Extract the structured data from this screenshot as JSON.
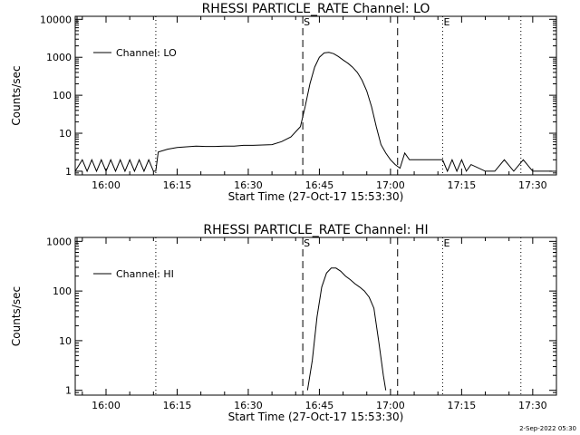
{
  "footer": {
    "timestamp": "2-Sep-2022 05:30"
  },
  "chart_data": [
    {
      "type": "line",
      "title": "RHESSI PARTICLE_RATE Channel: LO",
      "xlabel": "Start Time (27-Oct-17 15:53:30)",
      "ylabel": "Counts/sec",
      "yscale": "log",
      "xlim": [
        "15:53:30",
        "17:35:00"
      ],
      "ylim": [
        0.8,
        12000
      ],
      "x_ticks": [
        "16:00",
        "16:15",
        "16:30",
        "16:45",
        "17:00",
        "17:15",
        "17:30"
      ],
      "y_ticks": [
        "1",
        "10",
        "100",
        "1000",
        "10000"
      ],
      "legend": {
        "position": "top-left",
        "entries": [
          "Channel: LO"
        ]
      },
      "markers": [
        {
          "time": "16:10:30",
          "style": "dotted",
          "label": ""
        },
        {
          "time": "16:41:30",
          "style": "dashed",
          "label": "S"
        },
        {
          "time": "17:01:30",
          "style": "dashed",
          "label": ""
        },
        {
          "time": "17:11:00",
          "style": "dotted",
          "label": "E"
        },
        {
          "time": "17:27:30",
          "style": "dotted",
          "label": ""
        }
      ],
      "series": [
        {
          "name": "Channel: LO",
          "x": [
            "15:53:30",
            "15:55:00",
            "15:56:00",
            "15:57:00",
            "15:58:00",
            "15:59:00",
            "16:00:00",
            "16:01:00",
            "16:02:00",
            "16:03:00",
            "16:04:00",
            "16:05:00",
            "16:06:00",
            "16:07:00",
            "16:08:00",
            "16:09:00",
            "16:10:00",
            "16:10:30",
            "16:11:00",
            "16:13:00",
            "16:15:00",
            "16:17:00",
            "16:19:00",
            "16:21:00",
            "16:23:00",
            "16:25:00",
            "16:27:00",
            "16:29:00",
            "16:31:00",
            "16:33:00",
            "16:35:00",
            "16:37:00",
            "16:39:00",
            "16:41:00",
            "16:42:00",
            "16:43:00",
            "16:44:00",
            "16:45:00",
            "16:46:00",
            "16:47:00",
            "16:48:00",
            "16:49:00",
            "16:50:00",
            "16:51:00",
            "16:52:00",
            "16:53:00",
            "16:54:00",
            "16:55:00",
            "16:56:00",
            "16:57:00",
            "16:58:00",
            "16:59:00",
            "17:00:00",
            "17:01:00",
            "17:02:00",
            "17:03:00",
            "17:04:00",
            "17:05:00",
            "17:07:00",
            "17:09:00",
            "17:11:00",
            "17:12:00",
            "17:13:00",
            "17:14:00",
            "17:15:00",
            "17:16:00",
            "17:17:00",
            "17:20:00",
            "17:22:00",
            "17:24:00",
            "17:26:00",
            "17:28:00",
            "17:30:00",
            "17:32:00",
            "17:34:00"
          ],
          "y": [
            1,
            2,
            1,
            2,
            1,
            2,
            1,
            2,
            1,
            2,
            1,
            2,
            1,
            2,
            1,
            2,
            1,
            1,
            3.2,
            3.8,
            4.2,
            4.4,
            4.6,
            4.5,
            4.5,
            4.6,
            4.6,
            4.8,
            4.8,
            4.9,
            5.0,
            6.0,
            8.0,
            15,
            50,
            200,
            550,
            1000,
            1300,
            1350,
            1250,
            1050,
            850,
            700,
            550,
            400,
            250,
            130,
            50,
            15,
            5,
            3,
            2,
            1.5,
            1.2,
            3,
            2,
            2,
            2,
            2,
            2,
            1,
            2,
            1,
            2,
            1,
            1.5,
            1,
            1,
            2,
            1,
            2,
            1,
            1,
            1
          ]
        }
      ]
    },
    {
      "type": "line",
      "title": "RHESSI PARTICLE_RATE Channel: HI",
      "xlabel": "Start Time (27-Oct-17 15:53:30)",
      "ylabel": "Counts/sec",
      "yscale": "log",
      "xlim": [
        "15:53:30",
        "17:35:00"
      ],
      "ylim": [
        0.8,
        1200
      ],
      "x_ticks": [
        "16:00",
        "16:15",
        "16:30",
        "16:45",
        "17:00",
        "17:15",
        "17:30"
      ],
      "y_ticks": [
        "1",
        "10",
        "100",
        "1000"
      ],
      "legend": {
        "position": "top-left",
        "entries": [
          "Channel: HI"
        ]
      },
      "markers": [
        {
          "time": "16:10:30",
          "style": "dotted",
          "label": ""
        },
        {
          "time": "16:41:30",
          "style": "dashed",
          "label": "S"
        },
        {
          "time": "17:01:30",
          "style": "dashed",
          "label": ""
        },
        {
          "time": "17:11:00",
          "style": "dotted",
          "label": "E"
        },
        {
          "time": "17:27:30",
          "style": "dotted",
          "label": ""
        }
      ],
      "series": [
        {
          "name": "Channel: HI",
          "x": [
            "16:42:30",
            "16:43:30",
            "16:44:30",
            "16:45:30",
            "16:46:30",
            "16:47:30",
            "16:48:30",
            "16:49:30",
            "16:50:30",
            "16:51:30",
            "16:52:30",
            "16:53:30",
            "16:54:30",
            "16:55:30",
            "16:56:30",
            "16:57:30",
            "16:58:30",
            "16:59:00"
          ],
          "y": [
            1,
            4,
            30,
            120,
            230,
            290,
            290,
            250,
            200,
            170,
            140,
            120,
            100,
            75,
            45,
            10,
            2,
            1
          ]
        }
      ]
    }
  ]
}
